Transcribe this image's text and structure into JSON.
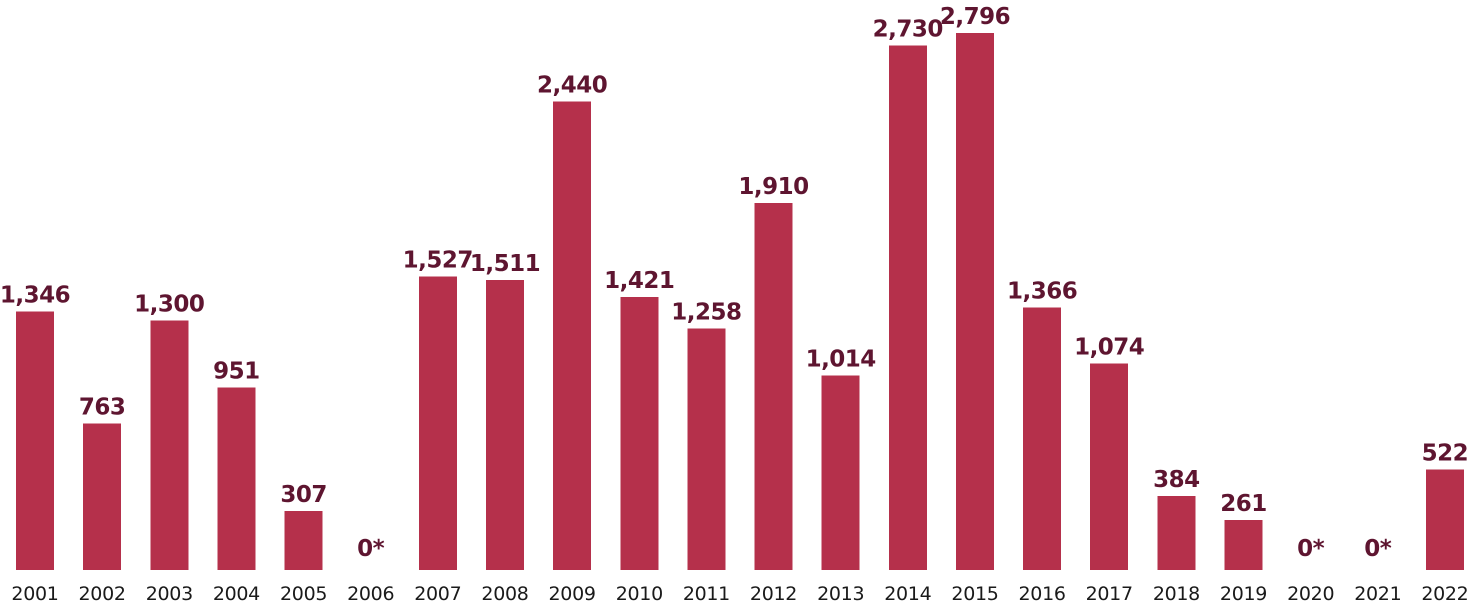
{
  "chart_data": {
    "type": "bar",
    "title": "",
    "xlabel": "",
    "ylabel": "",
    "ylim": [
      0,
      2900
    ],
    "grid": false,
    "legend": "none",
    "categories": [
      "2001",
      "2002",
      "2003",
      "2004",
      "2005",
      "2006",
      "2007",
      "2008",
      "2009",
      "2010",
      "2011",
      "2012",
      "2013",
      "2014",
      "2015",
      "2016",
      "2017",
      "2018",
      "2019",
      "2020",
      "2021",
      "2022"
    ],
    "values": [
      1346,
      763,
      1300,
      951,
      307,
      0,
      1527,
      1511,
      2440,
      1421,
      1258,
      1910,
      1014,
      2730,
      2796,
      1366,
      1074,
      384,
      261,
      0,
      0,
      522
    ],
    "data_labels": [
      "1,346",
      "763",
      "1,300",
      "951",
      "307",
      "0*",
      "1,527",
      "1,511",
      "2,440",
      "1,421",
      "1,258",
      "1,910",
      "1,014",
      "2,730",
      "2,796",
      "1,366",
      "1,074",
      "384",
      "261",
      "0*",
      "0*",
      "522"
    ],
    "colors": {
      "bar": "#b5304b",
      "value_label": "#5e1530",
      "tick_label": "#1a1a1a"
    }
  }
}
